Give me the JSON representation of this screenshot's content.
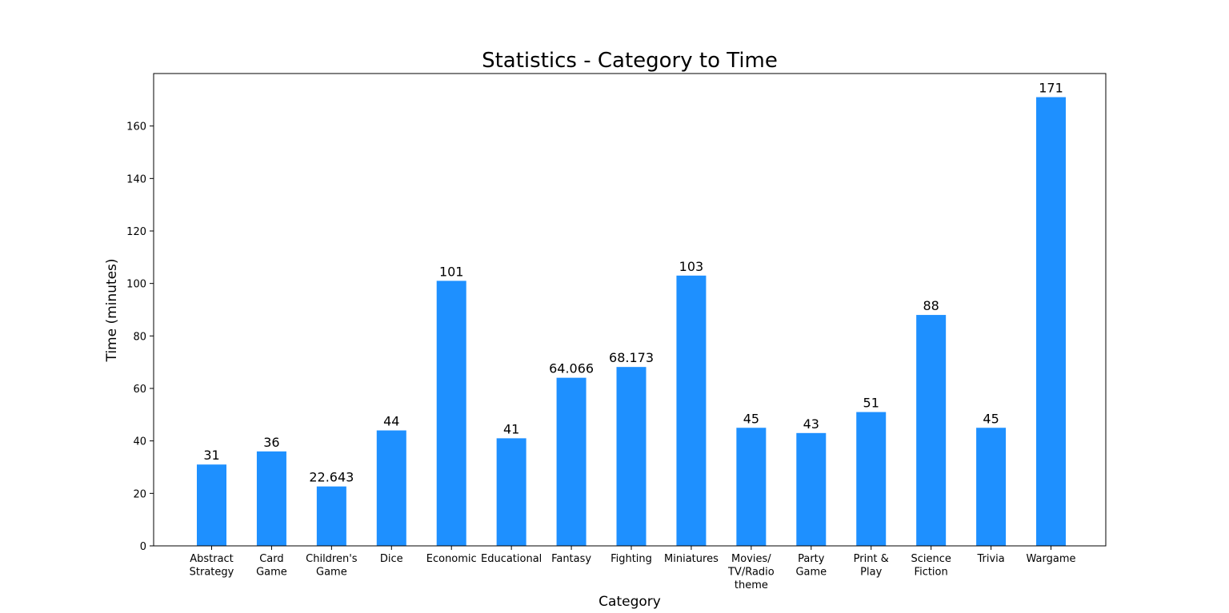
{
  "chart_data": {
    "type": "bar",
    "title": "Statistics - Category to Time",
    "xlabel": "Category",
    "ylabel": "Time (minutes)",
    "ylim": [
      0,
      180
    ],
    "yticks": [
      0,
      20,
      40,
      60,
      80,
      100,
      120,
      140,
      160
    ],
    "bar_color": "#1E90FF",
    "grid": false,
    "categories": [
      [
        "Abstract",
        "Strategy"
      ],
      [
        "Card",
        "Game"
      ],
      [
        "Children's",
        "Game"
      ],
      [
        "Dice"
      ],
      [
        "Economic"
      ],
      [
        "Educational"
      ],
      [
        "Fantasy"
      ],
      [
        "Fighting"
      ],
      [
        "Miniatures"
      ],
      [
        "Movies/",
        "TV/Radio",
        "theme"
      ],
      [
        "Party",
        "Game"
      ],
      [
        "Print &",
        "Play"
      ],
      [
        "Science",
        "Fiction"
      ],
      [
        "Trivia"
      ],
      [
        "Wargame"
      ]
    ],
    "values": [
      31,
      36,
      22.643,
      44,
      101,
      41,
      64.066,
      68.173,
      103,
      45,
      43,
      51,
      88,
      45,
      171
    ],
    "data_labels": [
      "31",
      "36",
      "22.643",
      "44",
      "101",
      "41",
      "64.066",
      "68.173",
      "103",
      "45",
      "43",
      "51",
      "88",
      "45",
      "171"
    ]
  }
}
